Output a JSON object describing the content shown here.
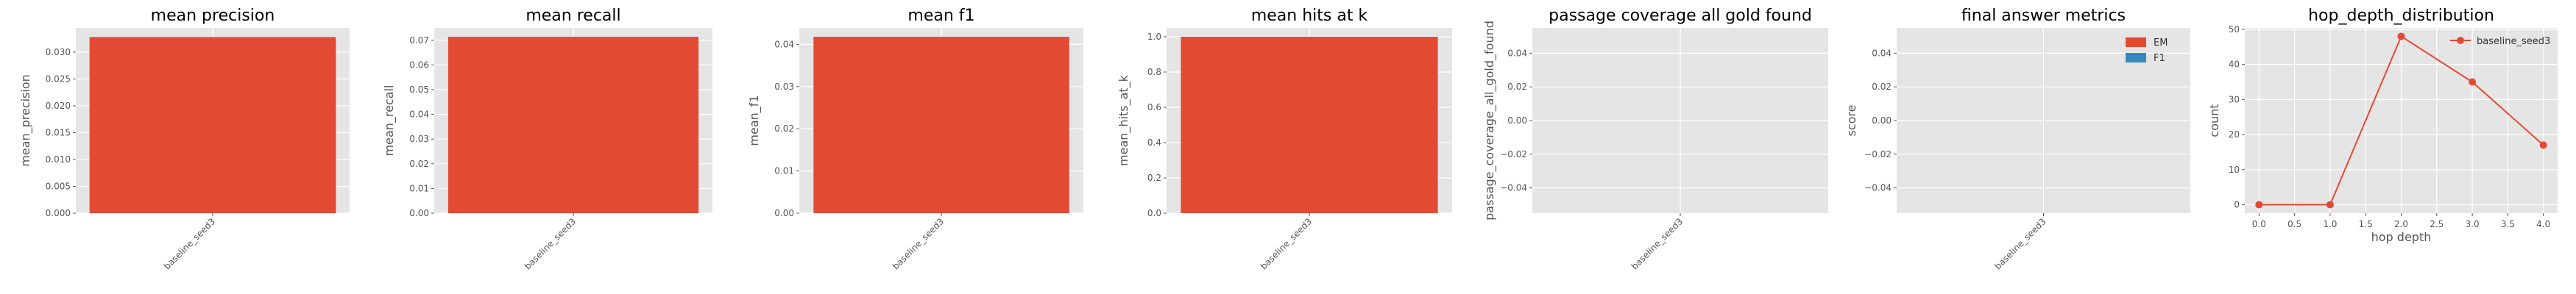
{
  "colors": {
    "panel_bg": "#e5e5e5",
    "bar": "#e24a33",
    "f1": "#348abd",
    "tick_text": "#555555"
  },
  "chart_data": [
    {
      "type": "bar",
      "title": "mean precision",
      "xlabel": "",
      "ylabel": "mean_precision",
      "categories": [
        "baseline_seed3"
      ],
      "values": [
        0.0328
      ],
      "ylim": [
        0,
        0.0345
      ],
      "yticks": [
        "0.000",
        "0.005",
        "0.010",
        "0.015",
        "0.020",
        "0.025",
        "0.030"
      ],
      "ytick_values": [
        0,
        0.005,
        0.01,
        0.015,
        0.02,
        0.025,
        0.03
      ],
      "grid": true
    },
    {
      "type": "bar",
      "title": "mean recall",
      "xlabel": "",
      "ylabel": "mean_recall",
      "categories": [
        "baseline_seed3"
      ],
      "values": [
        0.0714
      ],
      "ylim": [
        0,
        0.075
      ],
      "yticks": [
        "0.00",
        "0.01",
        "0.02",
        "0.03",
        "0.04",
        "0.05",
        "0.06",
        "0.07"
      ],
      "ytick_values": [
        0,
        0.01,
        0.02,
        0.03,
        0.04,
        0.05,
        0.06,
        0.07
      ],
      "grid": true
    },
    {
      "type": "bar",
      "title": "mean f1",
      "xlabel": "",
      "ylabel": "mean_f1",
      "categories": [
        "baseline_seed3"
      ],
      "values": [
        0.0418
      ],
      "ylim": [
        0,
        0.0439
      ],
      "yticks": [
        "0.00",
        "0.01",
        "0.02",
        "0.03",
        "0.04"
      ],
      "ytick_values": [
        0,
        0.01,
        0.02,
        0.03,
        0.04
      ],
      "grid": true
    },
    {
      "type": "bar",
      "title": "mean hits at k",
      "xlabel": "",
      "ylabel": "mean_hits_at_k",
      "categories": [
        "baseline_seed3"
      ],
      "values": [
        1.0
      ],
      "ylim": [
        0,
        1.05
      ],
      "yticks": [
        "0.0",
        "0.2",
        "0.4",
        "0.6",
        "0.8",
        "1.0"
      ],
      "ytick_values": [
        0,
        0.2,
        0.4,
        0.6,
        0.8,
        1.0
      ],
      "grid": true
    },
    {
      "type": "bar",
      "title": "passage coverage all gold found",
      "xlabel": "",
      "ylabel": "passage_coverage_all_gold_found",
      "categories": [
        "baseline_seed3"
      ],
      "values": [
        0
      ],
      "ylim": [
        -0.055,
        0.055
      ],
      "yticks": [
        "−0.04",
        "−0.02",
        "0.00",
        "0.02",
        "0.04"
      ],
      "ytick_values": [
        -0.04,
        -0.02,
        0,
        0.02,
        0.04
      ],
      "grid": true
    },
    {
      "type": "bar",
      "title": "final answer metrics",
      "xlabel": "",
      "ylabel": "score",
      "categories": [
        "baseline_seed3"
      ],
      "series": [
        {
          "name": "EM",
          "values": [
            0
          ]
        },
        {
          "name": "F1",
          "values": [
            0
          ]
        }
      ],
      "ylim": [
        -0.055,
        0.055
      ],
      "yticks": [
        "−0.04",
        "−0.02",
        "0.00",
        "0.02",
        "0.04"
      ],
      "ytick_values": [
        -0.04,
        -0.02,
        0,
        0.02,
        0.04
      ],
      "legend": "top-right",
      "grid": true
    },
    {
      "type": "line",
      "title": "hop_depth_distribution",
      "xlabel": "hop depth",
      "ylabel": "count",
      "x": [
        0,
        1,
        2,
        3,
        4
      ],
      "series": [
        {
          "name": "baseline_seed3",
          "values": [
            0,
            0,
            48,
            35,
            17
          ]
        }
      ],
      "xlim": [
        -0.2,
        4.2
      ],
      "ylim": [
        -2.4,
        50.4
      ],
      "xticks": [
        "0.0",
        "0.5",
        "1.0",
        "1.5",
        "2.0",
        "2.5",
        "3.0",
        "3.5",
        "4.0"
      ],
      "xtick_values": [
        0,
        0.5,
        1,
        1.5,
        2,
        2.5,
        3,
        3.5,
        4
      ],
      "yticks": [
        "0",
        "10",
        "20",
        "30",
        "40",
        "50"
      ],
      "ytick_values": [
        0,
        10,
        20,
        30,
        40,
        50
      ],
      "legend": "top-right",
      "grid": true
    }
  ]
}
